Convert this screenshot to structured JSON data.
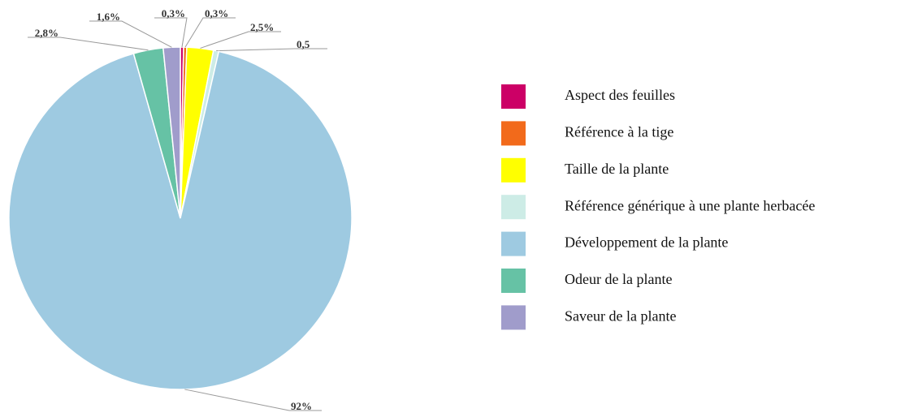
{
  "chart_data": {
    "type": "pie",
    "categories": [
      "Aspect des feuilles",
      "Référence à la tige",
      "Taille de la plante",
      "Référence générique à une plante herbacée",
      "Développement de la plante",
      "Odeur de la plante",
      "Saveur de la plante"
    ],
    "values": [
      0.3,
      0.3,
      2.5,
      0.5,
      92,
      2.8,
      1.6
    ],
    "value_labels": [
      "0,3%",
      "0,3%",
      "2,5%",
      "0,5",
      "92%",
      "2,8%",
      "1,6%"
    ],
    "colors": [
      "#cc0066",
      "#f26a1b",
      "#ffff00",
      "#cdece6",
      "#9ecae1",
      "#66c2a5",
      "#a09ccb"
    ],
    "legend": "right"
  }
}
